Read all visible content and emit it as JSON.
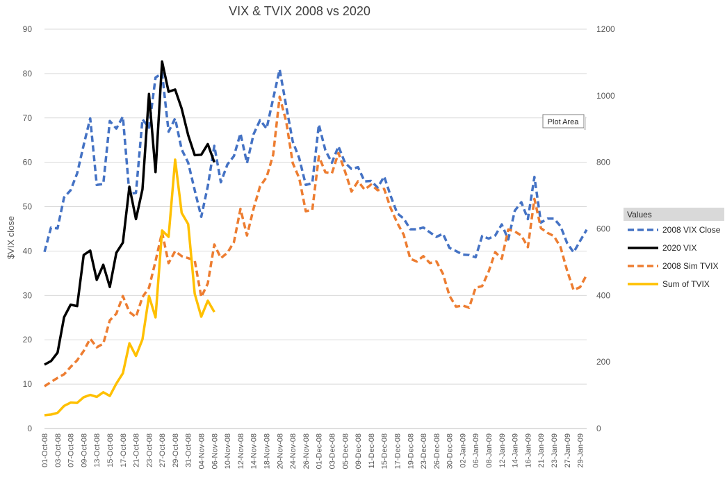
{
  "chart_data": {
    "type": "line",
    "title": "VIX & TVIX 2008 vs 2020",
    "ylabel": "$VIX close",
    "y_left_lim": [
      0,
      90
    ],
    "y_left_ticks": [
      0,
      10,
      20,
      30,
      40,
      50,
      60,
      70,
      80,
      90
    ],
    "y_right_lim": [
      0,
      1200
    ],
    "y_right_ticks": [
      0,
      200,
      400,
      600,
      800,
      1000,
      1200
    ],
    "categories": [
      "01-Oct-08",
      "02-Oct-08",
      "03-Oct-08",
      "06-Oct-08",
      "07-Oct-08",
      "08-Oct-08",
      "09-Oct-08",
      "10-Oct-08",
      "13-Oct-08",
      "14-Oct-08",
      "15-Oct-08",
      "16-Oct-08",
      "17-Oct-08",
      "20-Oct-08",
      "21-Oct-08",
      "22-Oct-08",
      "23-Oct-08",
      "24-Oct-08",
      "27-Oct-08",
      "28-Oct-08",
      "29-Oct-08",
      "30-Oct-08",
      "31-Oct-08",
      "03-Nov-08",
      "04-Nov-08",
      "05-Nov-08",
      "06-Nov-08",
      "07-Nov-08",
      "10-Nov-08",
      "11-Nov-08",
      "12-Nov-08",
      "13-Nov-08",
      "14-Nov-08",
      "17-Nov-08",
      "18-Nov-08",
      "19-Nov-08",
      "20-Nov-08",
      "21-Nov-08",
      "24-Nov-08",
      "25-Nov-08",
      "26-Nov-08",
      "28-Nov-08",
      "01-Dec-08",
      "02-Dec-08",
      "03-Dec-08",
      "04-Dec-08",
      "05-Dec-08",
      "08-Dec-08",
      "09-Dec-08",
      "10-Dec-08",
      "11-Dec-08",
      "12-Dec-08",
      "15-Dec-08",
      "16-Dec-08",
      "17-Dec-08",
      "18-Dec-08",
      "19-Dec-08",
      "22-Dec-08",
      "23-Dec-08",
      "24-Dec-08",
      "26-Dec-08",
      "29-Dec-08",
      "30-Dec-08",
      "31-Dec-08",
      "02-Jan-09",
      "05-Jan-09",
      "06-Jan-09",
      "07-Jan-09",
      "08-Jan-09",
      "09-Jan-09",
      "12-Jan-09",
      "13-Jan-09",
      "14-Jan-09",
      "15-Jan-09",
      "16-Jan-09",
      "20-Jan-09",
      "21-Jan-09",
      "22-Jan-09",
      "23-Jan-09",
      "26-Jan-09",
      "27-Jan-09",
      "28-Jan-09",
      "29-Jan-09",
      "30-Jan-09"
    ],
    "x_tick_labels": [
      "01-Oct-08",
      "03-Oct-08",
      "07-Oct-08",
      "09-Oct-08",
      "13-Oct-08",
      "15-Oct-08",
      "17-Oct-08",
      "21-Oct-08",
      "23-Oct-08",
      "27-Oct-08",
      "29-Oct-08",
      "31-Oct-08",
      "04-Nov-08",
      "06-Nov-08",
      "10-Nov-08",
      "12-Nov-08",
      "14-Nov-08",
      "18-Nov-08",
      "20-Nov-08",
      "24-Nov-08",
      "26-Nov-08",
      "01-Dec-08",
      "03-Dec-08",
      "05-Dec-08",
      "09-Dec-08",
      "11-Dec-08",
      "15-Dec-08",
      "17-Dec-08",
      "19-Dec-08",
      "23-Dec-08",
      "26-Dec-08",
      "30-Dec-08",
      "02-Jan-09",
      "06-Jan-09",
      "08-Jan-09",
      "12-Jan-09",
      "14-Jan-09",
      "16-Jan-09",
      "21-Jan-09",
      "23-Jan-09",
      "27-Jan-09",
      "29-Jan-09"
    ],
    "series": [
      {
        "name": "2008 VIX Close",
        "axis": "left",
        "color": "#4472C4",
        "dash": "dashed",
        "values": [
          39.8,
          45.3,
          45.1,
          52.1,
          53.7,
          57.5,
          63.9,
          69.9,
          54.9,
          55.1,
          69.3,
          67.6,
          70.3,
          52.9,
          53.1,
          69.7,
          67.8,
          79.1,
          80.1,
          66.9,
          69.9,
          62.9,
          59.9,
          53.7,
          47.7,
          54.6,
          63.7,
          55.5,
          59.5,
          61.4,
          66.5,
          59.8,
          66.3,
          69.5,
          67.6,
          74.3,
          80.9,
          72.7,
          64.7,
          60.9,
          54.9,
          55.3,
          68.5,
          62.7,
          59.9,
          63.6,
          59.9,
          58.5,
          58.9,
          55.7,
          55.8,
          54.3,
          56.8,
          52.4,
          48.5,
          47.3,
          44.9,
          44.9,
          45.3,
          44.2,
          43.2,
          43.9,
          40.7,
          40.0,
          39.2,
          39.1,
          38.6,
          43.4,
          42.8,
          43.5,
          46.0,
          42.6,
          49.1,
          51.0,
          47.2,
          56.7,
          46.4,
          47.3,
          47.3,
          45.6,
          41.8,
          39.7,
          42.3,
          44.8
        ]
      },
      {
        "name": "2020 VIX",
        "axis": "left",
        "color": "#000000",
        "dash": "solid",
        "values": [
          14.4,
          15.2,
          17.1,
          25.1,
          27.9,
          27.6,
          39.1,
          40.1,
          33.5,
          36.9,
          31.9,
          39.6,
          41.9,
          54.5,
          47.2,
          53.9,
          75.4,
          57.8,
          82.7,
          75.9,
          76.4,
          72.1,
          66.1,
          61.6,
          61.7,
          64.1,
          60.0,
          null,
          null,
          null,
          null,
          null,
          null,
          null,
          null,
          null,
          null,
          null,
          null,
          null,
          null,
          null,
          null,
          null,
          null,
          null,
          null,
          null,
          null,
          null,
          null,
          null,
          null,
          null,
          null,
          null,
          null,
          null,
          null,
          null,
          null,
          null,
          null,
          null,
          null,
          null,
          null,
          null,
          null,
          null,
          null,
          null,
          null,
          null,
          null,
          null,
          null,
          null,
          null,
          null,
          null,
          null,
          null,
          null
        ]
      },
      {
        "name": "2008 Sim TVIX",
        "axis": "right",
        "color": "#ED7D31",
        "dash": "dashed",
        "values": [
          127,
          140,
          152,
          163,
          185,
          205,
          233,
          270,
          244,
          255,
          325,
          345,
          398,
          350,
          335,
          395,
          423,
          503,
          590,
          497,
          533,
          518,
          512,
          505,
          395,
          436,
          553,
          512,
          528,
          560,
          660,
          580,
          660,
          728,
          755,
          822,
          997,
          923,
          798,
          752,
          653,
          657,
          818,
          770,
          767,
          828,
          773,
          712,
          743,
          718,
          733,
          716,
          720,
          662,
          618,
          582,
          510,
          502,
          518,
          497,
          502,
          465,
          399,
          366,
          370,
          363,
          423,
          428,
          472,
          530,
          510,
          598,
          592,
          580,
          545,
          690,
          602,
          588,
          578,
          545,
          475,
          416,
          425,
          462
        ]
      },
      {
        "name": "Sum of TVIX",
        "axis": "right",
        "color": "#FFC000",
        "dash": "solid",
        "values": [
          40,
          42,
          47,
          68,
          78,
          77,
          94,
          101,
          95,
          109,
          98,
          135,
          166,
          256,
          218,
          268,
          398,
          334,
          595,
          576,
          808,
          648,
          614,
          405,
          336,
          384,
          350,
          null,
          null,
          null,
          null,
          null,
          null,
          null,
          null,
          null,
          null,
          null,
          null,
          null,
          null,
          null,
          null,
          null,
          null,
          null,
          null,
          null,
          null,
          null,
          null,
          null,
          null,
          null,
          null,
          null,
          null,
          null,
          null,
          null,
          null,
          null,
          null,
          null,
          null,
          null,
          null,
          null,
          null,
          null,
          null,
          null,
          null,
          null,
          null,
          null,
          null,
          null,
          null,
          null,
          null,
          null,
          null,
          null
        ]
      }
    ],
    "grid": true,
    "legend": {
      "title": "Values",
      "position": "right"
    },
    "annotation": "Plot Area"
  }
}
